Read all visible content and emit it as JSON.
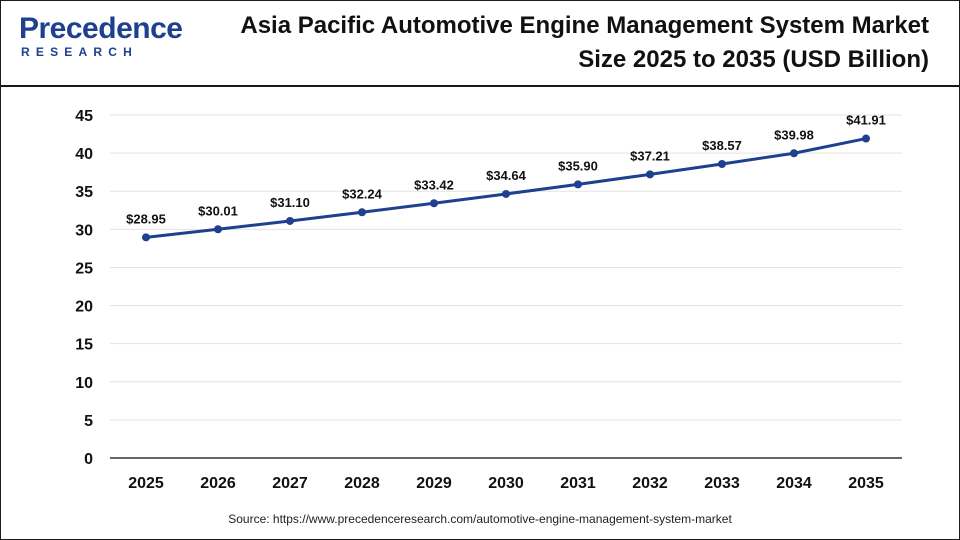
{
  "header": {
    "logo_top": "Precedence",
    "logo_bottom": "RESEARCH",
    "title": "Asia Pacific Automotive Engine Management System Market Size 2025 to 2035 (USD Billion)"
  },
  "source": "Source: https://www.precedenceresearch.com/automotive-engine-management-system-market",
  "colors": {
    "line": "#1f3f8f",
    "logo": "#1f3f8f",
    "grid": "#e3e3e3"
  },
  "chart_data": {
    "type": "line",
    "title": "Asia Pacific Automotive Engine Management System Market Size 2025 to 2035 (USD Billion)",
    "xlabel": "",
    "ylabel": "",
    "ylim": [
      0,
      45
    ],
    "yticks": [
      0,
      5,
      10,
      15,
      20,
      25,
      30,
      35,
      40,
      45
    ],
    "grid": true,
    "categories": [
      "2025",
      "2026",
      "2027",
      "2028",
      "2029",
      "2030",
      "2031",
      "2032",
      "2033",
      "2034",
      "2035"
    ],
    "values": [
      28.95,
      30.01,
      31.1,
      32.24,
      33.42,
      34.64,
      35.9,
      37.21,
      38.57,
      39.98,
      41.91
    ],
    "labels": [
      "$28.95",
      "$30.01",
      "$31.10",
      "$32.24",
      "$33.42",
      "$34.64",
      "$35.90",
      "$37.21",
      "$38.57",
      "$39.98",
      "$41.91"
    ]
  }
}
